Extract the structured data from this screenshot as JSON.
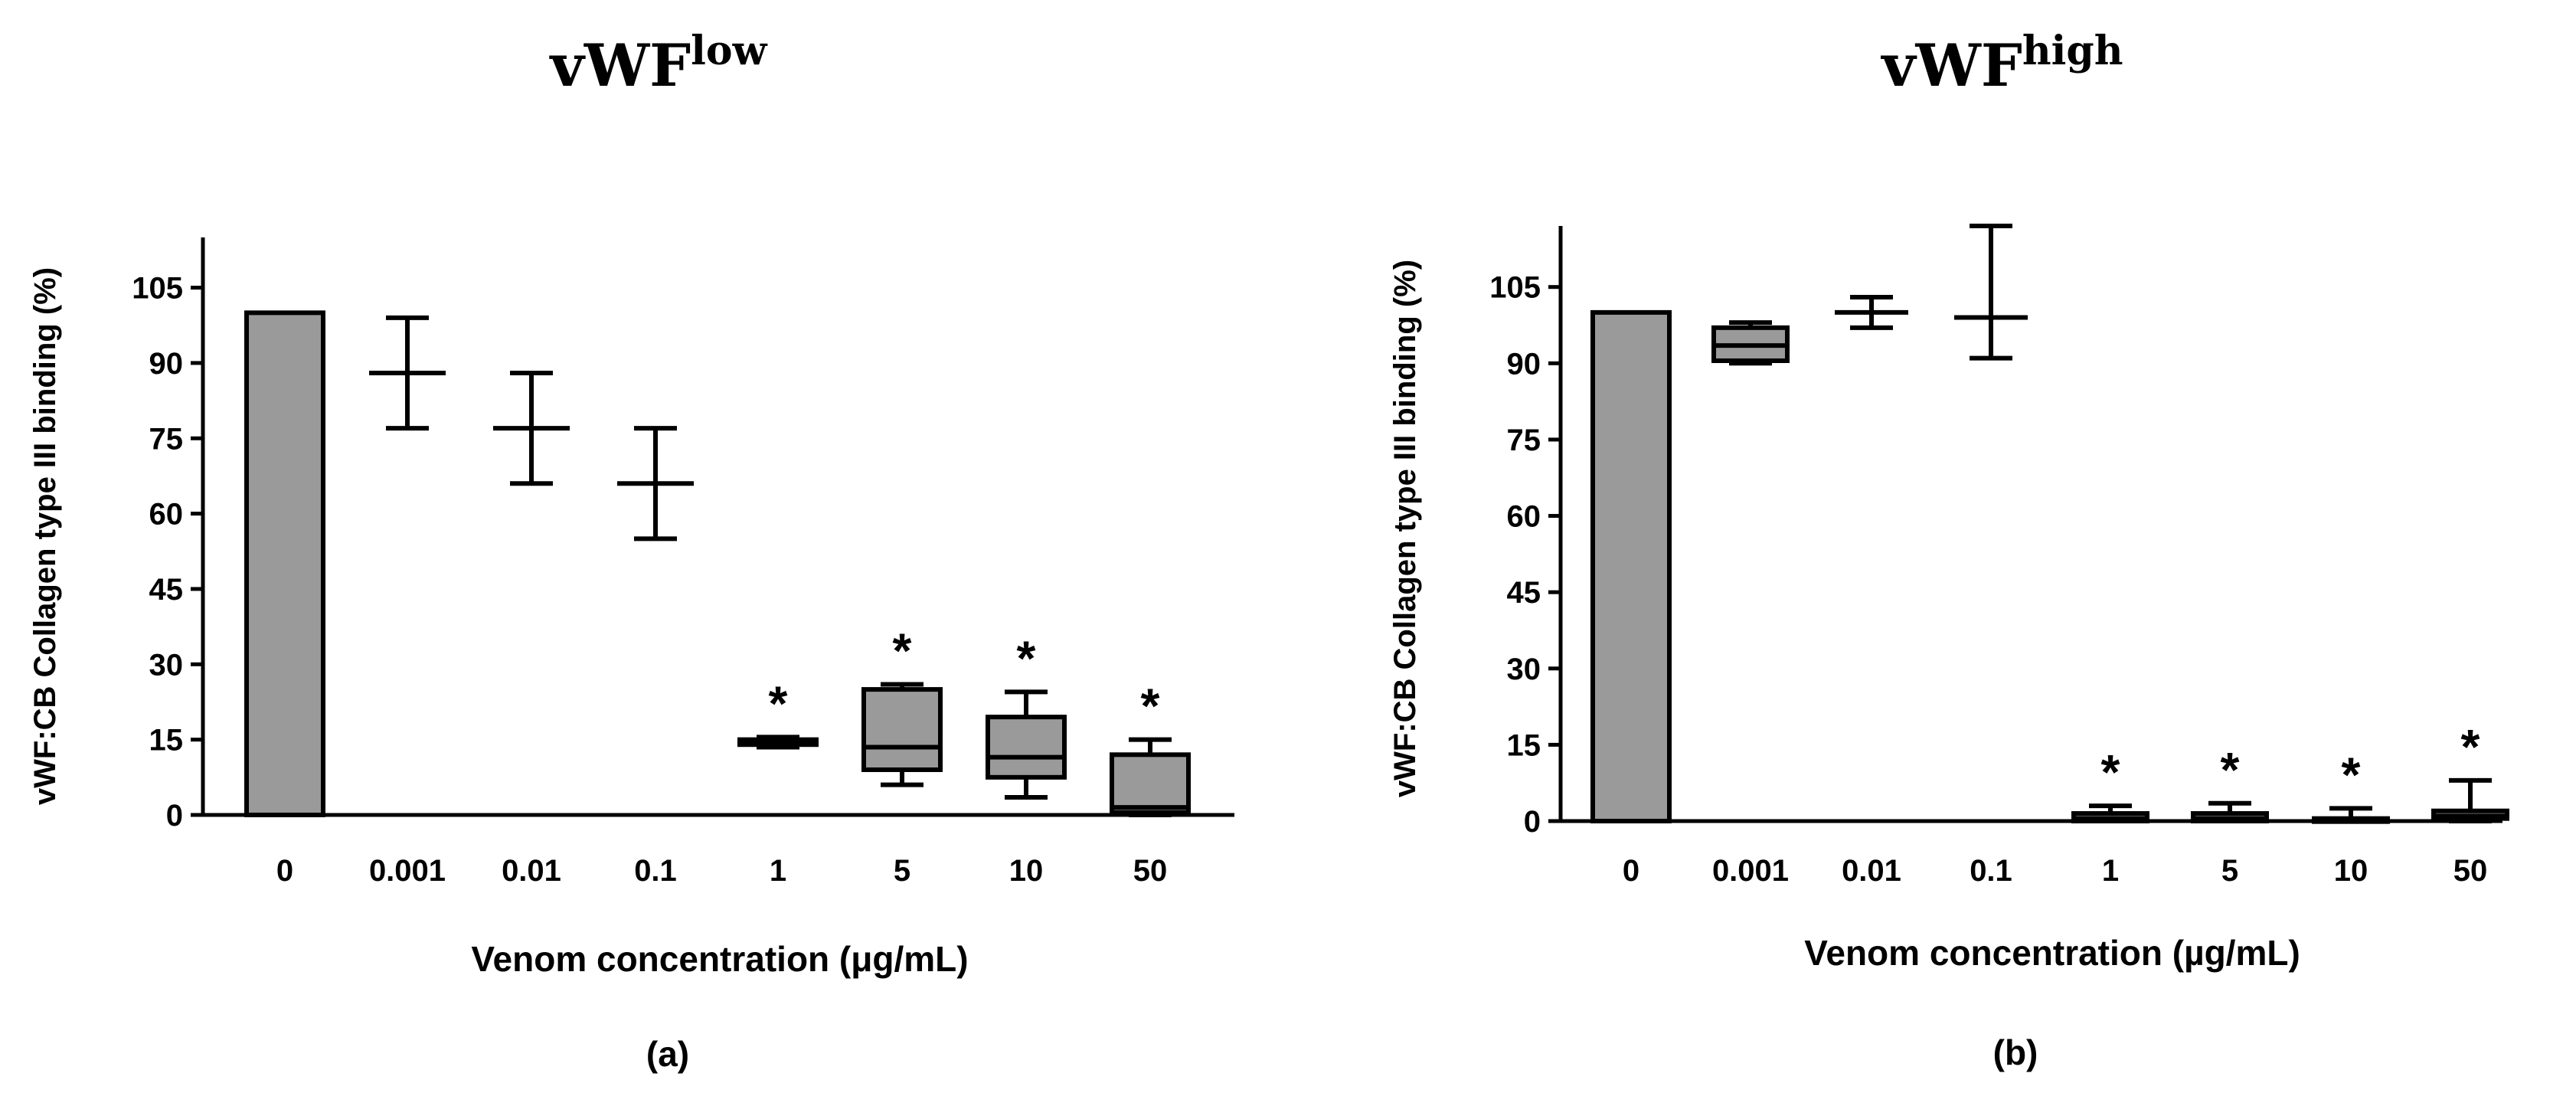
{
  "chart_data": [
    {
      "type": "box",
      "panel_label": "(a)",
      "title": {
        "base": "vWF",
        "sup": "low"
      },
      "xlabel": "Venom concentration (μg/mL)",
      "ylabel": "vWF:CB Collagen type III binding (%)",
      "ylim": [
        0,
        115
      ],
      "yticks": [
        "0",
        "15",
        "30",
        "45",
        "60",
        "75",
        "90",
        "105"
      ],
      "categories": [
        "0",
        "0.001",
        "0.01",
        "0.1",
        "1",
        "5",
        "10",
        "50"
      ],
      "groups": [
        {
          "category": "0",
          "kind": "bar",
          "value": 100
        },
        {
          "category": "0.001",
          "kind": "errorbar",
          "min": 77,
          "mid": 88,
          "max": 99
        },
        {
          "category": "0.01",
          "kind": "errorbar",
          "min": 66,
          "mid": 77,
          "max": 88
        },
        {
          "category": "0.1",
          "kind": "errorbar",
          "min": 55,
          "mid": 66,
          "max": 77
        },
        {
          "category": "1",
          "kind": "box",
          "min": 13.5,
          "q1": 14,
          "median": 14.5,
          "q3": 15,
          "max": 15.5,
          "significant": true
        },
        {
          "category": "5",
          "kind": "box",
          "min": 6,
          "q1": 9,
          "median": 13.5,
          "q3": 25,
          "max": 26,
          "significant": true
        },
        {
          "category": "10",
          "kind": "box",
          "min": 3.5,
          "q1": 7.5,
          "median": 11.5,
          "q3": 19.5,
          "max": 24.5,
          "significant": true
        },
        {
          "category": "50",
          "kind": "box",
          "min": 0,
          "q1": 0.5,
          "median": 1.5,
          "q3": 12,
          "max": 15,
          "significant": true
        }
      ],
      "significance_marker": "*"
    },
    {
      "type": "box",
      "panel_label": "(b)",
      "title": {
        "base": "vWF",
        "sup": "high"
      },
      "xlabel": "Venom concentration (µg/mL)",
      "ylabel": "vWF:CB Collagen type III binding (%)",
      "ylim": [
        0,
        117
      ],
      "yticks": [
        "0",
        "15",
        "30",
        "45",
        "60",
        "75",
        "90",
        "105"
      ],
      "categories": [
        "0",
        "0.001",
        "0.01",
        "0.1",
        "1",
        "5",
        "10",
        "50"
      ],
      "groups": [
        {
          "category": "0",
          "kind": "bar",
          "value": 100
        },
        {
          "category": "0.001",
          "kind": "box",
          "min": 90,
          "q1": 90.5,
          "median": 93.5,
          "q3": 97,
          "max": 98
        },
        {
          "category": "0.01",
          "kind": "errorbar",
          "min": 97,
          "mid": 100,
          "max": 103
        },
        {
          "category": "0.1",
          "kind": "errorbar",
          "min": 91,
          "mid": 99,
          "max": 117
        },
        {
          "category": "1",
          "kind": "box",
          "min": 0,
          "q1": 0,
          "median": 0.5,
          "q3": 1.5,
          "max": 3,
          "significant": true
        },
        {
          "category": "5",
          "kind": "box",
          "min": 0,
          "q1": 0,
          "median": 0.5,
          "q3": 1.5,
          "max": 3.5,
          "significant": true
        },
        {
          "category": "10",
          "kind": "box",
          "min": 0,
          "q1": 0,
          "median": 0,
          "q3": 0.5,
          "max": 2.5,
          "significant": true
        },
        {
          "category": "50",
          "kind": "box",
          "min": 0,
          "q1": 0.5,
          "median": 1,
          "q3": 2,
          "max": 8,
          "significant": true
        }
      ],
      "significance_marker": "*"
    }
  ],
  "colors": {
    "fill": "#9a9a9a",
    "stroke": "#000000",
    "background": "#ffffff"
  }
}
